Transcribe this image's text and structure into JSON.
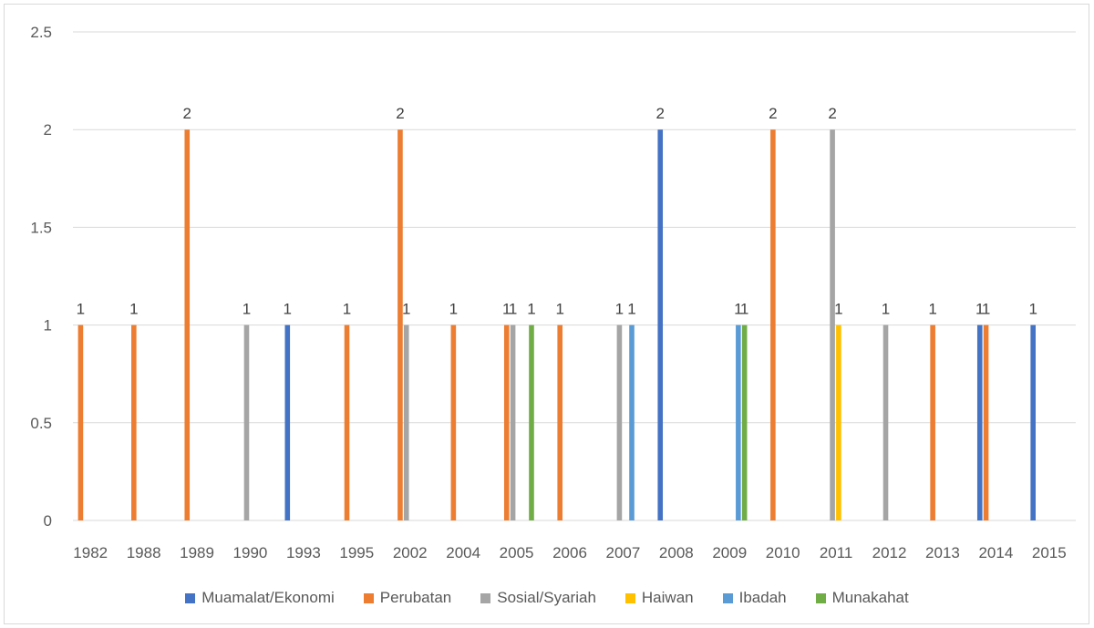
{
  "chart_data": {
    "type": "bar",
    "title": "",
    "xlabel": "",
    "ylabel": "",
    "ylim": [
      0,
      2.5
    ],
    "y_ticks": [
      "0",
      "0.5",
      "1",
      "1.5",
      "2",
      "2.5"
    ],
    "grid": true,
    "legend_position": "bottom",
    "data_labels": true,
    "categories": [
      "1982",
      "1988",
      "1989",
      "1990",
      "1993",
      "1995",
      "2002",
      "2004",
      "2005",
      "2006",
      "2007",
      "2008",
      "2009",
      "2010",
      "2011",
      "2012",
      "2013",
      "2014",
      "2015"
    ],
    "series": [
      {
        "name": "Muamalat/Ekonomi",
        "color": "#4472c4",
        "values": [
          null,
          null,
          null,
          null,
          1,
          null,
          null,
          null,
          null,
          null,
          null,
          2,
          null,
          null,
          null,
          null,
          null,
          1,
          1
        ]
      },
      {
        "name": "Perubatan",
        "color": "#ed7d31",
        "values": [
          1,
          1,
          2,
          null,
          null,
          1,
          2,
          1,
          1,
          1,
          null,
          null,
          null,
          2,
          null,
          null,
          1,
          1,
          null
        ]
      },
      {
        "name": "Sosial/Syariah",
        "color": "#a5a5a5",
        "values": [
          null,
          null,
          null,
          1,
          null,
          null,
          1,
          null,
          1,
          null,
          1,
          null,
          null,
          null,
          2,
          1,
          null,
          null,
          null
        ]
      },
      {
        "name": "Haiwan",
        "color": "#ffc000",
        "values": [
          null,
          null,
          null,
          null,
          null,
          null,
          null,
          null,
          null,
          null,
          null,
          null,
          null,
          null,
          1,
          null,
          null,
          null,
          null
        ]
      },
      {
        "name": "Ibadah",
        "color": "#5b9bd5",
        "values": [
          null,
          null,
          null,
          null,
          null,
          null,
          null,
          null,
          null,
          null,
          1,
          null,
          1,
          null,
          null,
          null,
          null,
          null,
          null
        ]
      },
      {
        "name": "Munakahat",
        "color": "#70ad47",
        "values": [
          null,
          null,
          null,
          null,
          null,
          null,
          null,
          null,
          1,
          null,
          null,
          null,
          1,
          null,
          null,
          null,
          null,
          null,
          null
        ]
      }
    ]
  }
}
